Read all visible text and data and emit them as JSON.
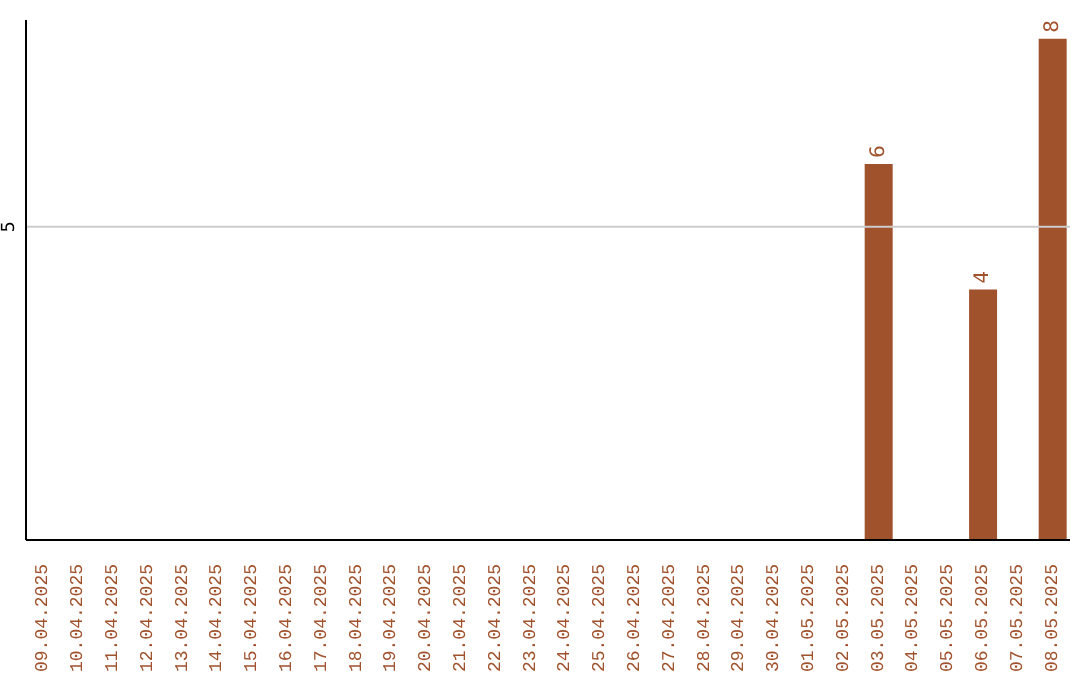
{
  "chart_data": {
    "type": "bar",
    "categories": [
      "09.04.2025",
      "10.04.2025",
      "11.04.2025",
      "12.04.2025",
      "13.04.2025",
      "14.04.2025",
      "15.04.2025",
      "16.04.2025",
      "17.04.2025",
      "18.04.2025",
      "19.04.2025",
      "20.04.2025",
      "21.04.2025",
      "22.04.2025",
      "23.04.2025",
      "24.04.2025",
      "25.04.2025",
      "26.04.2025",
      "27.04.2025",
      "28.04.2025",
      "29.04.2025",
      "30.04.2025",
      "01.05.2025",
      "02.05.2025",
      "03.05.2025",
      "04.05.2025",
      "05.05.2025",
      "06.05.2025",
      "07.05.2025",
      "08.05.2025"
    ],
    "values": [
      null,
      null,
      null,
      null,
      null,
      null,
      null,
      null,
      null,
      null,
      null,
      null,
      null,
      null,
      null,
      null,
      null,
      null,
      null,
      null,
      null,
      null,
      null,
      null,
      6,
      null,
      null,
      4,
      null,
      8
    ],
    "data_labels": true,
    "color": "#a0522d",
    "ylim": [
      0,
      8.3
    ],
    "legend": false,
    "ref_lines": [
      {
        "axis": "y",
        "value": 5,
        "label": "5",
        "color": "#cccccc"
      }
    ]
  }
}
